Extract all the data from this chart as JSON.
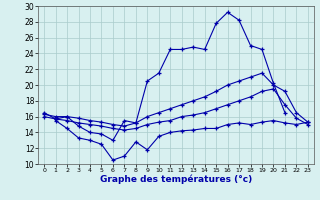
{
  "xlabel": "Graphe des températures (°c)",
  "line_color": "#0000aa",
  "bg_color": "#d8f0f0",
  "grid_color": "#aacccc",
  "ylim": [
    10,
    30
  ],
  "xlim": [
    -0.5,
    23.5
  ],
  "yticks": [
    10,
    12,
    14,
    16,
    18,
    20,
    22,
    24,
    26,
    28,
    30
  ],
  "xticks": [
    0,
    1,
    2,
    3,
    4,
    5,
    6,
    7,
    8,
    9,
    10,
    11,
    12,
    13,
    14,
    15,
    16,
    17,
    18,
    19,
    20,
    21,
    22,
    23
  ],
  "curve_top_x": [
    0,
    1,
    2,
    3,
    4,
    5,
    6,
    7,
    8,
    9,
    10,
    11,
    12,
    13,
    14,
    15,
    16,
    17,
    18,
    19,
    20,
    21
  ],
  "curve_top_y": [
    16.5,
    15.7,
    16.0,
    14.8,
    14.0,
    13.8,
    13.0,
    15.5,
    15.2,
    20.5,
    21.5,
    24.5,
    24.5,
    24.8,
    24.5,
    27.8,
    29.2,
    28.2,
    25.0,
    24.5,
    20.2,
    16.5
  ],
  "curve_mid1_x": [
    0,
    1,
    2,
    3,
    4,
    5,
    6,
    7,
    8,
    9,
    10,
    11,
    12,
    13,
    14,
    15,
    16,
    17,
    18,
    19,
    20,
    21,
    22,
    23
  ],
  "curve_mid1_y": [
    16.3,
    16.0,
    16.0,
    15.8,
    15.5,
    15.3,
    15.0,
    14.8,
    15.2,
    16.0,
    16.5,
    17.0,
    17.5,
    18.0,
    18.5,
    19.2,
    20.0,
    20.5,
    21.0,
    21.5,
    20.0,
    19.2,
    16.5,
    15.3
  ],
  "curve_mid2_x": [
    0,
    1,
    2,
    3,
    4,
    5,
    6,
    7,
    8,
    9,
    10,
    11,
    12,
    13,
    14,
    15,
    16,
    17,
    18,
    19,
    20,
    21,
    22,
    23
  ],
  "curve_mid2_y": [
    16.0,
    15.7,
    15.5,
    15.2,
    15.0,
    14.8,
    14.5,
    14.3,
    14.5,
    15.0,
    15.3,
    15.5,
    16.0,
    16.2,
    16.5,
    17.0,
    17.5,
    18.0,
    18.5,
    19.2,
    19.5,
    17.5,
    15.8,
    15.0
  ],
  "curve_bot_x": [
    1,
    2,
    3,
    4,
    5,
    6,
    7,
    8,
    9,
    10,
    11,
    12,
    13,
    14,
    15,
    16,
    17,
    18,
    19,
    20,
    21,
    22,
    23
  ],
  "curve_bot_y": [
    15.5,
    14.5,
    13.3,
    13.0,
    12.5,
    10.5,
    11.0,
    12.8,
    11.8,
    13.5,
    14.0,
    14.2,
    14.3,
    14.5,
    14.5,
    15.0,
    15.2,
    15.0,
    15.3,
    15.5,
    15.2,
    15.0,
    15.3
  ]
}
